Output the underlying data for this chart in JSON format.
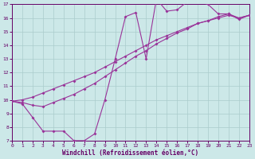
{
  "xlabel": "Windchill (Refroidissement éolien,°C)",
  "bg_color": "#cce8e8",
  "grid_color": "#aacccc",
  "line_color": "#993399",
  "xmin": 0,
  "xmax": 23,
  "ymin": 7,
  "ymax": 17,
  "yticks": [
    7,
    8,
    9,
    10,
    11,
    12,
    13,
    14,
    15,
    16,
    17
  ],
  "xticks": [
    0,
    1,
    2,
    3,
    4,
    5,
    6,
    7,
    8,
    9,
    10,
    11,
    12,
    13,
    14,
    15,
    16,
    17,
    18,
    19,
    20,
    21,
    22,
    23
  ],
  "line1_x": [
    0,
    1,
    2,
    3,
    4,
    5,
    6,
    7,
    8,
    9,
    10,
    11,
    12,
    13,
    14,
    15,
    16,
    17,
    18,
    19,
    20,
    21,
    22,
    23
  ],
  "line1_y": [
    9.9,
    9.7,
    8.7,
    7.7,
    7.7,
    7.7,
    7.0,
    7.0,
    7.5,
    10.0,
    13.0,
    16.1,
    16.4,
    13.0,
    17.4,
    16.5,
    16.6,
    17.2,
    17.2,
    17.0,
    16.3,
    16.3,
    16.0,
    16.2
  ],
  "line2_x": [
    0,
    1,
    2,
    3,
    4,
    5,
    6,
    7,
    8,
    9,
    10,
    11,
    12,
    13,
    14,
    15,
    16,
    17,
    18,
    19,
    20,
    21,
    22,
    23
  ],
  "line2_y": [
    9.9,
    10.0,
    10.2,
    10.5,
    10.8,
    11.1,
    11.4,
    11.7,
    12.0,
    12.4,
    12.8,
    13.2,
    13.6,
    14.0,
    14.4,
    14.7,
    15.0,
    15.3,
    15.6,
    15.8,
    16.0,
    16.2,
    16.0,
    16.2
  ],
  "line3_x": [
    0,
    1,
    2,
    3,
    4,
    5,
    6,
    7,
    8,
    9,
    10,
    11,
    12,
    13,
    14,
    15,
    16,
    17,
    18,
    19,
    20,
    21,
    22,
    23
  ],
  "line3_y": [
    9.9,
    9.8,
    9.6,
    9.5,
    9.8,
    10.1,
    10.4,
    10.8,
    11.2,
    11.7,
    12.2,
    12.7,
    13.2,
    13.6,
    14.1,
    14.5,
    14.9,
    15.2,
    15.6,
    15.8,
    16.1,
    16.3,
    15.9,
    16.2
  ]
}
